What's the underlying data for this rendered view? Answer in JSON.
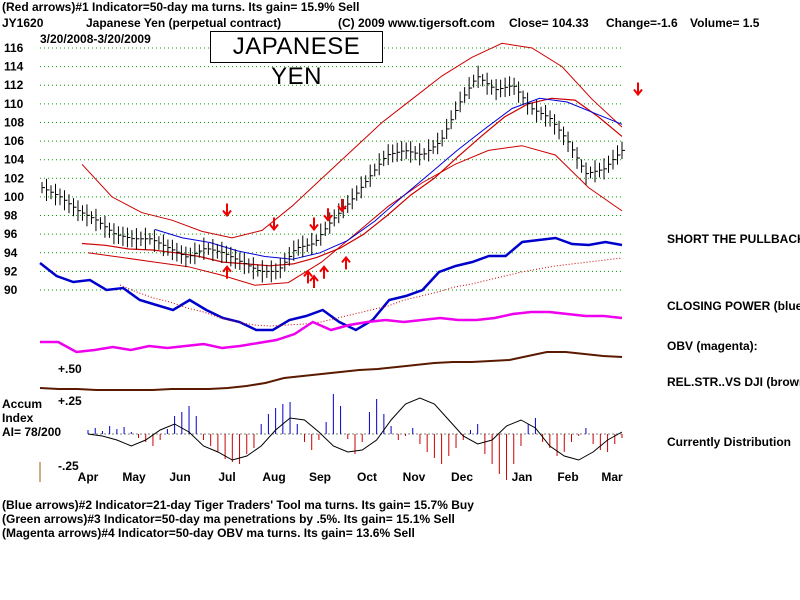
{
  "header": {
    "line1": "(Red arrows)#1 Indicator=50-day ma turns. Its gain= 15.9% Sell",
    "symbol": "JY1620",
    "name": "Japanese Yen (perpetual contract)",
    "copyright": "(C) 2009 www.tigersoft.com",
    "close": "Close=  104.33",
    "change": "Change=-1.6",
    "volume": "Volume= 1.5",
    "date_range": "3/20/2008-3/20/2009"
  },
  "chart_title": "JAPANESE YEN",
  "right_labels": {
    "pullback": "SHORT THE PULLBACK",
    "closing_power": "CLOSING POWER (blue)",
    "obv": "OBV (magenta):",
    "relstr": "REL.STR..VS DJI (brown)",
    "distribution": "Currently Distribution"
  },
  "accum": {
    "line1": "Accum",
    "line2": "Index",
    "line3": "AI= 78/200",
    "plus50": "+.50",
    "plus25": "+.25",
    "minus25": "-.25"
  },
  "footer": {
    "line1": "(Blue arrows)#2 Indicator=21-day Tiger Traders' Tool ma turns. Its gain= 15.7% Buy",
    "line2": "(Green arrows)#3 Indicator=50-day ma penetrations by .5%. Its gain= 15.1% Sell",
    "line3": "(Magenta arrows)#4 Indicator=50-day OBV ma turns. Its gain= 13.6% Sell"
  },
  "colors": {
    "price": "#000000",
    "bands": "#cc0000",
    "ma": "#0000dd",
    "closing_power": "#0000cc",
    "obv": "#ee00ee",
    "relstr": "#5a1a00",
    "accum_pos": "#0000cc",
    "accum_neg": "#cc0000",
    "grid": "#00a000"
  },
  "chart_data": {
    "type": "line",
    "y_ticks": [
      "116",
      "114",
      "112",
      "110",
      "108",
      "106",
      "104",
      "102",
      "100",
      "98",
      "96",
      "94",
      "92",
      "90"
    ],
    "ylim": [
      90,
      116
    ],
    "x_ticks": [
      "Apr",
      "May",
      "Jun",
      "Jul",
      "Aug",
      "Sep",
      "Oct",
      "Nov",
      "Dec",
      "Jan",
      "Feb",
      "Mar"
    ],
    "price_close": [
      101,
      100,
      98.5,
      97.5,
      96,
      95.5,
      95.5,
      94.5,
      93.5,
      94.5,
      94,
      93,
      92,
      92,
      94.5,
      95,
      97.5,
      99.5,
      102,
      104.5,
      105,
      104.5,
      106,
      110,
      113,
      111.5,
      112,
      109.5,
      108.5,
      106,
      102.5,
      103,
      105
    ],
    "mid_band": [
      95,
      94.8,
      94.4,
      94.3,
      94,
      93.6,
      93,
      92.8,
      92.6,
      92.8,
      93.5,
      94.5,
      96,
      98,
      100.2,
      102,
      104.3,
      106.5,
      108.6,
      110,
      110.6,
      110.4,
      108.6,
      106.5
    ],
    "upper_band": [
      103.5,
      100,
      98.3,
      97.5,
      96.3,
      95.6,
      96.4,
      99,
      102,
      105,
      108,
      110.5,
      113,
      115,
      116.5,
      116,
      114,
      110.5,
      107.5
    ],
    "lower_band": [
      94,
      93.5,
      93,
      92.5,
      91.6,
      90.5,
      90.8,
      93,
      96,
      99,
      101.5,
      103.5,
      105,
      105.5,
      104.5,
      101,
      98.5
    ],
    "ma_blue": [
      96.5,
      95.6,
      95.1,
      94.2,
      93.6,
      93.3,
      94,
      95.3,
      97.4,
      100,
      102.5,
      105,
      107.3,
      109.5,
      110.6,
      110.2,
      109,
      107.8
    ],
    "sell_arrows_red": [
      [
        "Jul",
        98
      ],
      [
        "Aug",
        96.5
      ],
      [
        "Sep",
        96.5
      ],
      [
        "Sep",
        97.5
      ],
      [
        "Sep",
        98.5
      ],
      [
        "Feb",
        111
      ]
    ],
    "buy_arrows_red": [
      [
        "Jul",
        92.5
      ],
      [
        "Aug",
        92
      ],
      [
        "Aug",
        91.5
      ],
      [
        "Sep",
        92.5
      ],
      [
        "Sep",
        93.5
      ]
    ]
  }
}
